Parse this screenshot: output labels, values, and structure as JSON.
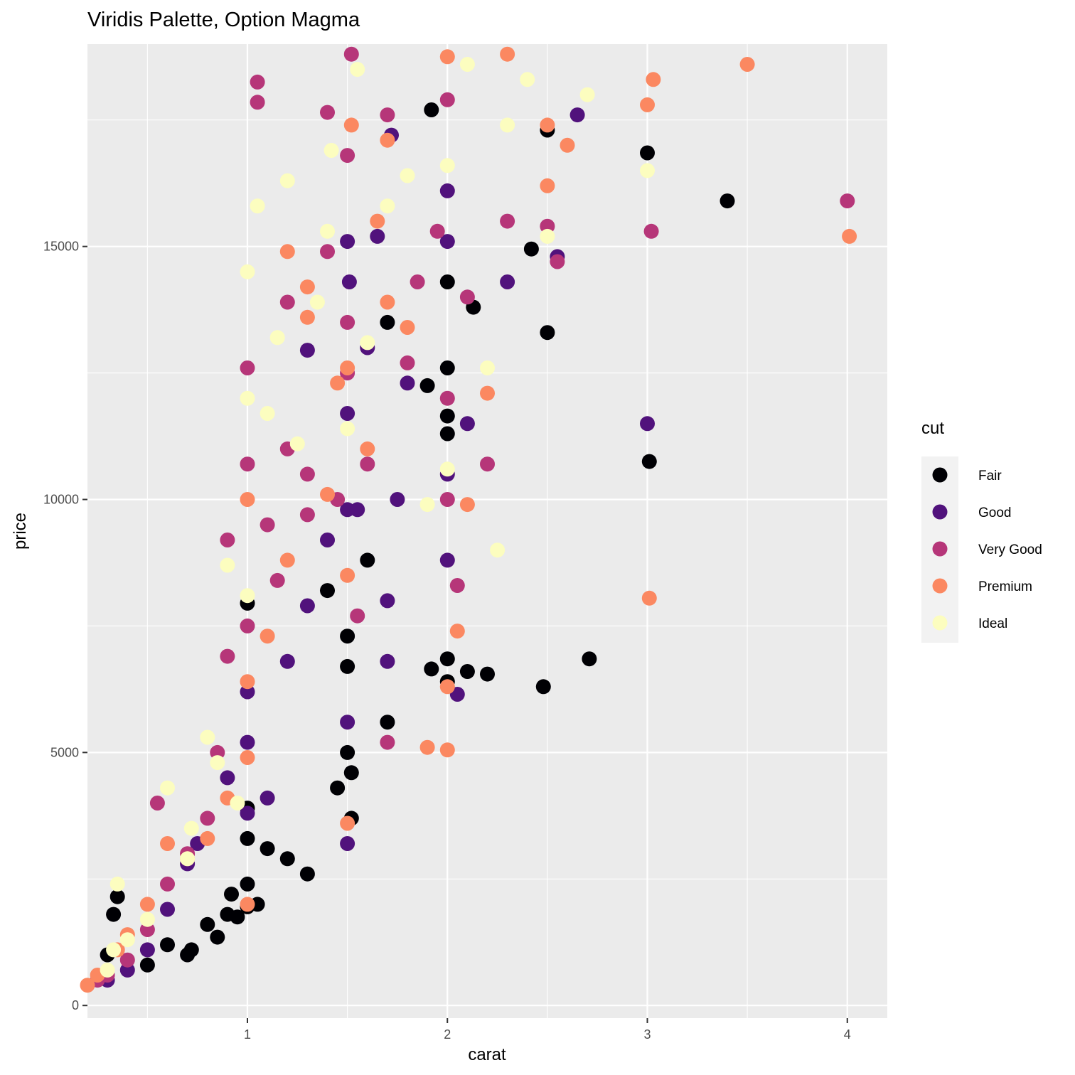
{
  "chart_data": {
    "type": "scatter",
    "title": "Viridis Palette, Option Magma",
    "xlabel": "carat",
    "ylabel": "price",
    "xlim": [
      0.2,
      4.2
    ],
    "ylim": [
      -250,
      19000
    ],
    "x_ticks": [
      1,
      2,
      3,
      4
    ],
    "x_tick_labels": [
      "1",
      "2",
      "3",
      "4"
    ],
    "y_ticks": [
      0,
      5000,
      10000,
      15000
    ],
    "y_tick_labels": [
      "0",
      "5000",
      "10000",
      "15000"
    ],
    "x_minor_ticks": [
      0.5,
      1.5,
      2.5,
      3.5
    ],
    "y_minor_ticks": [
      2500,
      7500,
      12500,
      17500
    ],
    "grid": true,
    "legend": {
      "title": "cut",
      "position": "right",
      "entries": [
        {
          "label": "Fair",
          "color": "#000004"
        },
        {
          "label": "Good",
          "color": "#51127C"
        },
        {
          "label": "Very Good",
          "color": "#B63679"
        },
        {
          "label": "Premium",
          "color": "#FB8861"
        },
        {
          "label": "Ideal",
          "color": "#FCFDBF"
        }
      ]
    },
    "series": [
      {
        "name": "Fair",
        "color": "#000004",
        "points": [
          [
            0.3,
            1000
          ],
          [
            0.33,
            1800
          ],
          [
            0.35,
            2150
          ],
          [
            0.5,
            800
          ],
          [
            0.6,
            1200
          ],
          [
            0.7,
            1000
          ],
          [
            0.72,
            1100
          ],
          [
            0.8,
            1600
          ],
          [
            0.85,
            1350
          ],
          [
            0.9,
            1800
          ],
          [
            0.92,
            2200
          ],
          [
            0.95,
            1750
          ],
          [
            1.0,
            1950
          ],
          [
            1.0,
            2400
          ],
          [
            1.0,
            3300
          ],
          [
            1.0,
            3900
          ],
          [
            1.0,
            7950
          ],
          [
            1.05,
            2000
          ],
          [
            1.1,
            3100
          ],
          [
            1.2,
            2900
          ],
          [
            1.3,
            2600
          ],
          [
            1.4,
            8200
          ],
          [
            1.45,
            4300
          ],
          [
            1.5,
            7300
          ],
          [
            1.5,
            6700
          ],
          [
            1.5,
            5000
          ],
          [
            1.52,
            4600
          ],
          [
            1.52,
            3700
          ],
          [
            1.6,
            8800
          ],
          [
            1.7,
            5600
          ],
          [
            1.7,
            13500
          ],
          [
            1.9,
            12250
          ],
          [
            1.92,
            17700
          ],
          [
            1.92,
            6650
          ],
          [
            2.0,
            12600
          ],
          [
            2.0,
            11300
          ],
          [
            2.0,
            11650
          ],
          [
            2.0,
            14300
          ],
          [
            2.0,
            6850
          ],
          [
            2.0,
            6400
          ],
          [
            2.1,
            6600
          ],
          [
            2.13,
            13800
          ],
          [
            2.2,
            6550
          ],
          [
            2.42,
            14950
          ],
          [
            2.48,
            6300
          ],
          [
            2.5,
            13300
          ],
          [
            2.5,
            17300
          ],
          [
            2.71,
            6850
          ],
          [
            3.0,
            16850
          ],
          [
            3.01,
            10750
          ],
          [
            3.4,
            15900
          ]
        ]
      },
      {
        "name": "Good",
        "color": "#51127C",
        "points": [
          [
            0.3,
            500
          ],
          [
            0.4,
            700
          ],
          [
            0.5,
            1100
          ],
          [
            0.6,
            1900
          ],
          [
            0.7,
            2800
          ],
          [
            0.75,
            3200
          ],
          [
            0.9,
            4500
          ],
          [
            1.0,
            3800
          ],
          [
            1.0,
            5200
          ],
          [
            1.0,
            6200
          ],
          [
            1.1,
            4100
          ],
          [
            1.2,
            6800
          ],
          [
            1.3,
            7900
          ],
          [
            1.3,
            12950
          ],
          [
            1.4,
            9200
          ],
          [
            1.5,
            3200
          ],
          [
            1.5,
            5600
          ],
          [
            1.5,
            9800
          ],
          [
            1.5,
            11700
          ],
          [
            1.5,
            15100
          ],
          [
            1.51,
            14300
          ],
          [
            1.55,
            9800
          ],
          [
            1.6,
            13000
          ],
          [
            1.65,
            15200
          ],
          [
            1.7,
            8000
          ],
          [
            1.7,
            6800
          ],
          [
            1.72,
            17200
          ],
          [
            1.75,
            10000
          ],
          [
            1.8,
            12300
          ],
          [
            2.0,
            10500
          ],
          [
            2.0,
            8800
          ],
          [
            2.0,
            15100
          ],
          [
            2.0,
            16100
          ],
          [
            2.05,
            6150
          ],
          [
            2.1,
            11500
          ],
          [
            2.3,
            14300
          ],
          [
            2.55,
            14800
          ],
          [
            2.65,
            17600
          ],
          [
            3.0,
            11500
          ]
        ]
      },
      {
        "name": "Very Good",
        "color": "#B63679",
        "points": [
          [
            0.25,
            500
          ],
          [
            0.3,
            600
          ],
          [
            0.4,
            900
          ],
          [
            0.5,
            1500
          ],
          [
            0.55,
            4000
          ],
          [
            0.6,
            2400
          ],
          [
            0.7,
            3000
          ],
          [
            0.8,
            3700
          ],
          [
            0.85,
            5000
          ],
          [
            0.9,
            6900
          ],
          [
            0.9,
            9200
          ],
          [
            1.0,
            7500
          ],
          [
            1.0,
            10700
          ],
          [
            1.0,
            12600
          ],
          [
            1.05,
            18250
          ],
          [
            1.05,
            17850
          ],
          [
            1.1,
            9500
          ],
          [
            1.15,
            8400
          ],
          [
            1.2,
            11000
          ],
          [
            1.2,
            13900
          ],
          [
            1.3,
            9700
          ],
          [
            1.3,
            10500
          ],
          [
            1.4,
            17650
          ],
          [
            1.4,
            14900
          ],
          [
            1.45,
            10000
          ],
          [
            1.5,
            12500
          ],
          [
            1.5,
            13500
          ],
          [
            1.5,
            16800
          ],
          [
            1.52,
            18800
          ],
          [
            1.55,
            7700
          ],
          [
            1.6,
            10700
          ],
          [
            1.7,
            5200
          ],
          [
            1.7,
            17600
          ],
          [
            1.8,
            12700
          ],
          [
            1.85,
            14300
          ],
          [
            1.95,
            15300
          ],
          [
            2.0,
            10000
          ],
          [
            2.0,
            17900
          ],
          [
            2.0,
            12000
          ],
          [
            2.05,
            8300
          ],
          [
            2.1,
            14000
          ],
          [
            2.2,
            10700
          ],
          [
            2.3,
            15500
          ],
          [
            2.5,
            15400
          ],
          [
            2.55,
            14700
          ],
          [
            3.02,
            15300
          ],
          [
            4.0,
            15900
          ]
        ]
      },
      {
        "name": "Premium",
        "color": "#FB8861",
        "points": [
          [
            0.2,
            400
          ],
          [
            0.25,
            600
          ],
          [
            0.35,
            1100
          ],
          [
            0.4,
            1400
          ],
          [
            0.5,
            2000
          ],
          [
            0.6,
            3200
          ],
          [
            0.7,
            2900
          ],
          [
            0.8,
            3300
          ],
          [
            0.9,
            4100
          ],
          [
            1.0,
            2000
          ],
          [
            1.0,
            4900
          ],
          [
            1.0,
            6400
          ],
          [
            1.0,
            10000
          ],
          [
            1.1,
            7300
          ],
          [
            1.2,
            8800
          ],
          [
            1.2,
            14900
          ],
          [
            1.3,
            13600
          ],
          [
            1.3,
            14200
          ],
          [
            1.4,
            10100
          ],
          [
            1.45,
            12300
          ],
          [
            1.5,
            3600
          ],
          [
            1.5,
            8500
          ],
          [
            1.5,
            12600
          ],
          [
            1.52,
            17400
          ],
          [
            1.6,
            11000
          ],
          [
            1.65,
            15500
          ],
          [
            1.7,
            17100
          ],
          [
            1.7,
            13900
          ],
          [
            1.8,
            13400
          ],
          [
            1.9,
            5100
          ],
          [
            2.0,
            5050
          ],
          [
            2.0,
            6300
          ],
          [
            2.0,
            18750
          ],
          [
            2.05,
            7400
          ],
          [
            2.1,
            9900
          ],
          [
            2.2,
            12100
          ],
          [
            2.3,
            18800
          ],
          [
            2.5,
            16200
          ],
          [
            2.5,
            17400
          ],
          [
            2.6,
            17000
          ],
          [
            3.0,
            17800
          ],
          [
            3.01,
            8050
          ],
          [
            3.03,
            18300
          ],
          [
            3.5,
            18600
          ],
          [
            4.01,
            15200
          ]
        ]
      },
      {
        "name": "Ideal",
        "color": "#FCFDBF",
        "points": [
          [
            0.3,
            700
          ],
          [
            0.33,
            1100
          ],
          [
            0.35,
            2400
          ],
          [
            0.4,
            1300
          ],
          [
            0.5,
            1700
          ],
          [
            0.6,
            4300
          ],
          [
            0.7,
            2900
          ],
          [
            0.72,
            3500
          ],
          [
            0.8,
            5300
          ],
          [
            0.85,
            4800
          ],
          [
            0.9,
            8700
          ],
          [
            0.95,
            4000
          ],
          [
            1.0,
            8100
          ],
          [
            1.0,
            12000
          ],
          [
            1.0,
            14500
          ],
          [
            1.05,
            15800
          ],
          [
            1.1,
            11700
          ],
          [
            1.15,
            13200
          ],
          [
            1.2,
            16300
          ],
          [
            1.25,
            11100
          ],
          [
            1.35,
            13900
          ],
          [
            1.4,
            15300
          ],
          [
            1.42,
            16900
          ],
          [
            1.5,
            11400
          ],
          [
            1.55,
            18500
          ],
          [
            1.6,
            13100
          ],
          [
            1.7,
            15800
          ],
          [
            1.8,
            16400
          ],
          [
            1.9,
            9900
          ],
          [
            2.0,
            10600
          ],
          [
            2.0,
            16600
          ],
          [
            2.1,
            18600
          ],
          [
            2.2,
            12600
          ],
          [
            2.3,
            17400
          ],
          [
            2.4,
            18300
          ],
          [
            2.5,
            15200
          ],
          [
            2.7,
            18000
          ],
          [
            3.0,
            16500
          ],
          [
            2.25,
            9000
          ]
        ]
      }
    ]
  }
}
